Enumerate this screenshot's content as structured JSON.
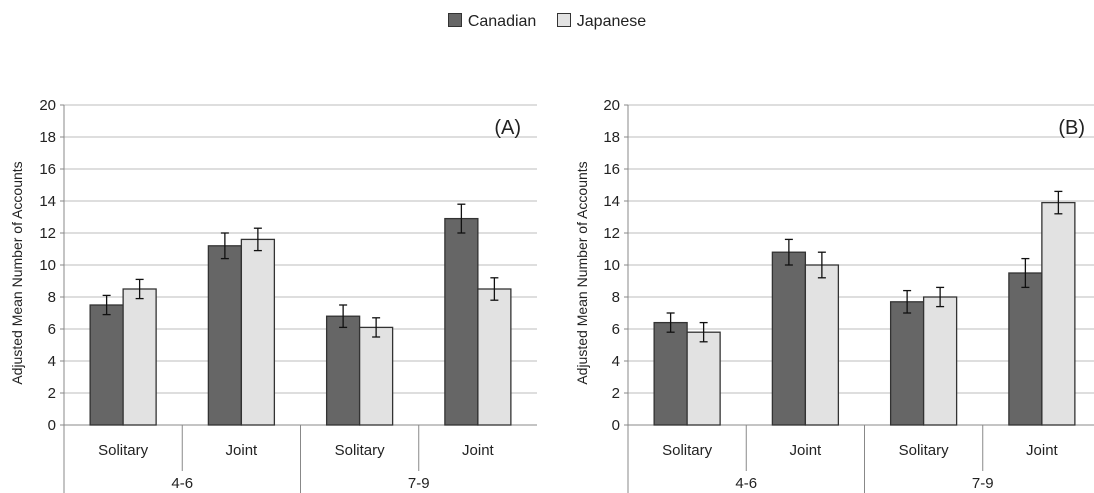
{
  "legend": [
    {
      "label": "Canadian",
      "color": "#666666"
    },
    {
      "label": "Japanese",
      "color": "#e2e2e2"
    }
  ],
  "chart_data": [
    {
      "type": "bar",
      "panel_label": "(A)",
      "ylabel": "Adjusted Mean Number of Accounts",
      "ylim": [
        0,
        20
      ],
      "yticks": [
        0,
        2,
        4,
        6,
        8,
        10,
        12,
        14,
        16,
        18,
        20
      ],
      "grid": true,
      "categories": [
        "Solitary",
        "Joint",
        "Solitary",
        "Joint"
      ],
      "groups": [
        {
          "label": "4-6",
          "span": [
            0,
            1
          ]
        },
        {
          "label": "7-9",
          "span": [
            2,
            3
          ]
        }
      ],
      "series": [
        {
          "name": "Canadian",
          "values": [
            7.5,
            11.2,
            6.8,
            12.9
          ],
          "errors": [
            0.6,
            0.8,
            0.7,
            0.9
          ]
        },
        {
          "name": "Japanese",
          "values": [
            8.5,
            11.6,
            6.1,
            8.5
          ],
          "errors": [
            0.6,
            0.7,
            0.6,
            0.7
          ]
        }
      ]
    },
    {
      "type": "bar",
      "panel_label": "(B)",
      "ylabel": "Adjusted Mean Number of Accounts",
      "ylim": [
        0,
        20
      ],
      "yticks": [
        0,
        2,
        4,
        6,
        8,
        10,
        12,
        14,
        16,
        18,
        20
      ],
      "grid": true,
      "categories": [
        "Solitary",
        "Joint",
        "Solitary",
        "Joint"
      ],
      "groups": [
        {
          "label": "4-6",
          "span": [
            0,
            1
          ]
        },
        {
          "label": "7-9",
          "span": [
            2,
            3
          ]
        }
      ],
      "series": [
        {
          "name": "Canadian",
          "values": [
            6.4,
            10.8,
            7.7,
            9.5
          ],
          "errors": [
            0.6,
            0.8,
            0.7,
            0.9
          ]
        },
        {
          "name": "Japanese",
          "values": [
            5.8,
            10.0,
            8.0,
            13.9
          ],
          "errors": [
            0.6,
            0.8,
            0.6,
            0.7
          ]
        }
      ]
    }
  ]
}
